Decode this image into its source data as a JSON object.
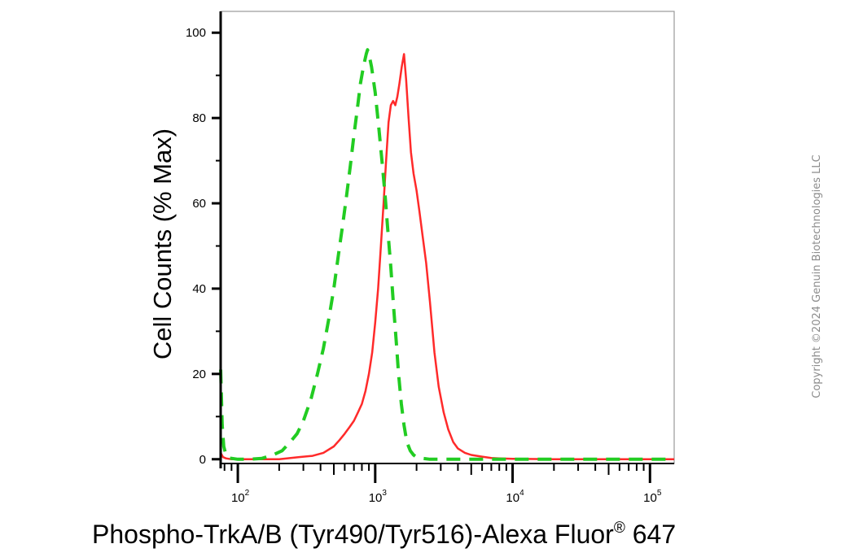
{
  "chart_data": {
    "type": "line",
    "xlabel": "Phospho-TrkA/B (Tyr490/Tyr516)-Alexa Fluor",
    "xlabel_superscript": "®",
    "xlabel_suffix": " 647",
    "ylabel": "Cell Counts (% Max)",
    "x_scale": "log",
    "xlim": [
      75,
      150000
    ],
    "ylim": [
      -1,
      105
    ],
    "x_ticks": [
      {
        "value": 100,
        "base": "10",
        "exp": "2"
      },
      {
        "value": 1000,
        "base": "10",
        "exp": "3"
      },
      {
        "value": 10000,
        "base": "10",
        "exp": "4"
      },
      {
        "value": 100000,
        "base": "10",
        "exp": "5"
      }
    ],
    "y_ticks": [
      "0",
      "20",
      "40",
      "60",
      "80",
      "100"
    ],
    "grid": false,
    "legend": "none",
    "series": [
      {
        "color": "#ff2a2a",
        "style": "solid",
        "x": [
          75,
          78,
          82,
          90,
          100,
          150,
          200,
          280,
          350,
          420,
          500,
          550,
          600,
          650,
          700,
          750,
          800,
          850,
          900,
          950,
          1000,
          1050,
          1100,
          1150,
          1200,
          1250,
          1300,
          1350,
          1400,
          1450,
          1500,
          1560,
          1620,
          1680,
          1750,
          1820,
          1900,
          2000,
          2100,
          2200,
          2350,
          2500,
          2700,
          2900,
          3150,
          3400,
          3700,
          4000,
          4500,
          5000,
          6000,
          7000,
          8000,
          10000,
          20000,
          50000,
          150000
        ],
        "y": [
          1.5,
          0.5,
          0.2,
          0,
          0,
          0,
          0,
          0.5,
          0.8,
          1.5,
          3,
          4.5,
          6,
          7.5,
          9,
          11,
          13,
          16,
          20,
          25,
          32,
          40,
          50,
          60,
          70,
          79,
          83,
          84,
          83,
          85,
          88,
          92,
          95,
          89,
          80,
          72,
          67,
          63,
          58,
          53,
          46,
          37,
          25,
          17,
          11,
          7,
          4,
          2.5,
          1.5,
          1,
          0.6,
          0.3,
          0.2,
          0.1,
          0,
          0,
          0
        ]
      },
      {
        "color": "#22cc22",
        "style": "dashed",
        "x": [
          75,
          77,
          79,
          82,
          86,
          90,
          100,
          120,
          150,
          180,
          210,
          240,
          270,
          300,
          340,
          380,
          420,
          460,
          500,
          540,
          580,
          620,
          660,
          700,
          740,
          780,
          820,
          860,
          880,
          900,
          940,
          1000,
          1060,
          1120,
          1180,
          1240,
          1300,
          1360,
          1420,
          1480,
          1550,
          1620,
          1700,
          1800,
          1900,
          2000,
          2200,
          2500,
          3000,
          5000,
          10000,
          150000
        ],
        "y": [
          21,
          8,
          3,
          1,
          0.3,
          0.2,
          0,
          0,
          0.2,
          1,
          2,
          4,
          6,
          9,
          14,
          20,
          26,
          33,
          40,
          48,
          55,
          62,
          69,
          76,
          82,
          88,
          92,
          95,
          96,
          95,
          92,
          86,
          78,
          70,
          62,
          53,
          45,
          36,
          28,
          20,
          13,
          8,
          4,
          2,
          1,
          0.5,
          0.2,
          0,
          0,
          0,
          0,
          0
        ]
      }
    ]
  },
  "copyright": "Copyright ©2024 Genuin Biotechnologies LLC"
}
